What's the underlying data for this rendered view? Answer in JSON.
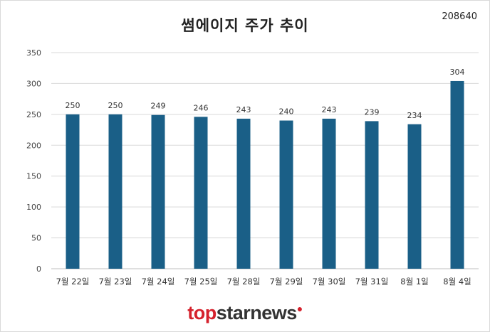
{
  "chart_data": {
    "type": "bar",
    "title": "썸에이지 주가 추이",
    "annotation": "208640",
    "categories": [
      "7월 22일",
      "7월 23일",
      "7월 24일",
      "7월 25일",
      "7월 28일",
      "7월 29일",
      "7월 30일",
      "7월 31일",
      "8월 1일",
      "8월 4일"
    ],
    "series": [
      {
        "values": [
          250,
          250,
          249,
          246,
          243,
          240,
          243,
          239,
          234,
          304
        ]
      }
    ],
    "y_ticks": [
      0,
      50,
      100,
      150,
      200,
      250,
      300,
      350
    ],
    "ylim": [
      0,
      350
    ],
    "grid": true,
    "legend": "none",
    "bar_color": "#1a5f87"
  },
  "branding": {
    "logo_red": "top",
    "logo_dark": "starnews",
    "logo_mark": "●"
  }
}
